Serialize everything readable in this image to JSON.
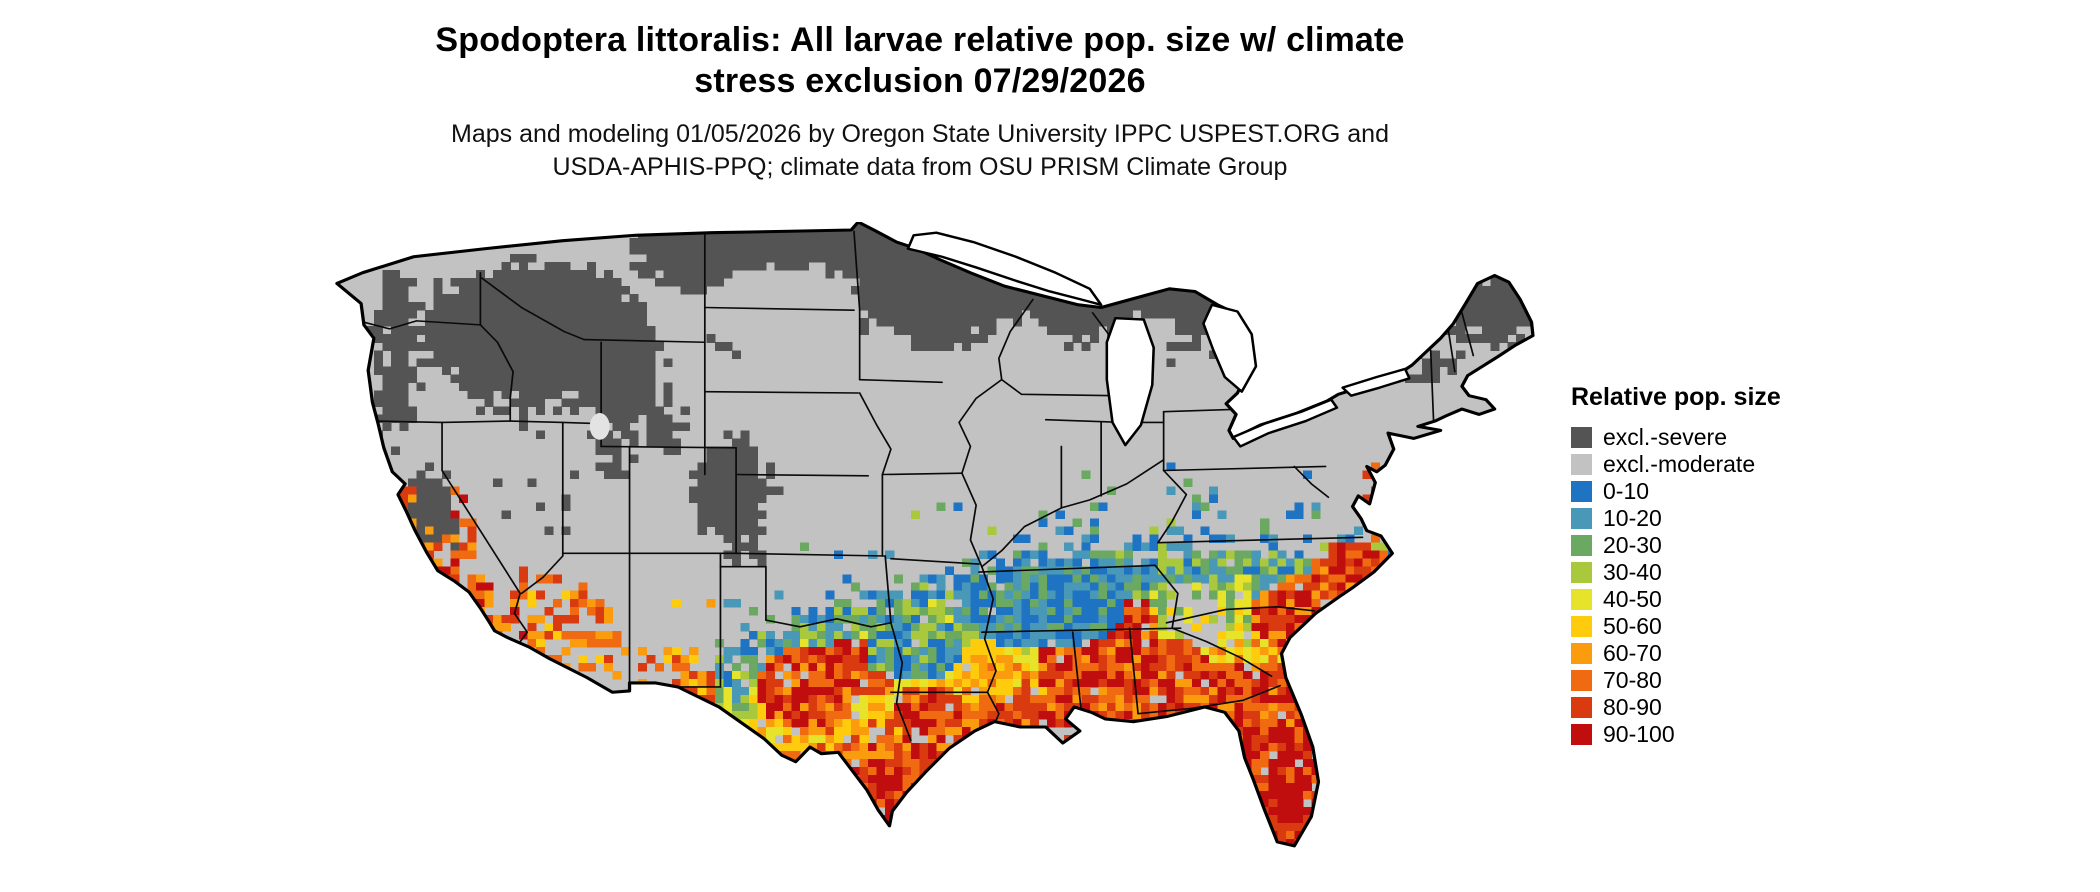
{
  "figure": {
    "background": "#ffffff"
  },
  "title": {
    "line1": "Spodoptera littoralis: All larvae relative pop. size w/ climate",
    "line2": "stress exclusion 07/29/2026"
  },
  "subtitle": {
    "line1": "Maps and modeling 01/05/2026 by Oregon State University IPPC USPEST.ORG and",
    "line2": "USDA-APHIS-PPQ; climate data from OSU PRISM Climate Group"
  },
  "legend": {
    "title": "Relative pop. size",
    "classes": [
      {
        "label": "excl.-severe",
        "color": "#545454"
      },
      {
        "label": "excl.-moderate",
        "color": "#c2c2c2"
      },
      {
        "label": "0-10",
        "color": "#1e73c3"
      },
      {
        "label": "10-20",
        "color": "#4a98b8"
      },
      {
        "label": "20-30",
        "color": "#6ba963"
      },
      {
        "label": "30-40",
        "color": "#a9c83c"
      },
      {
        "label": "40-50",
        "color": "#e6e32a"
      },
      {
        "label": "50-60",
        "color": "#fecb0d"
      },
      {
        "label": "60-70",
        "color": "#fb9c0e"
      },
      {
        "label": "70-80",
        "color": "#ef6a10"
      },
      {
        "label": "80-90",
        "color": "#da3a10"
      },
      {
        "label": "90-100",
        "color": "#c00d0d"
      }
    ]
  },
  "map": {
    "outline_color": "#000000",
    "state_line_color": "#0a0a0a",
    "water_color": "#ffffff"
  }
}
